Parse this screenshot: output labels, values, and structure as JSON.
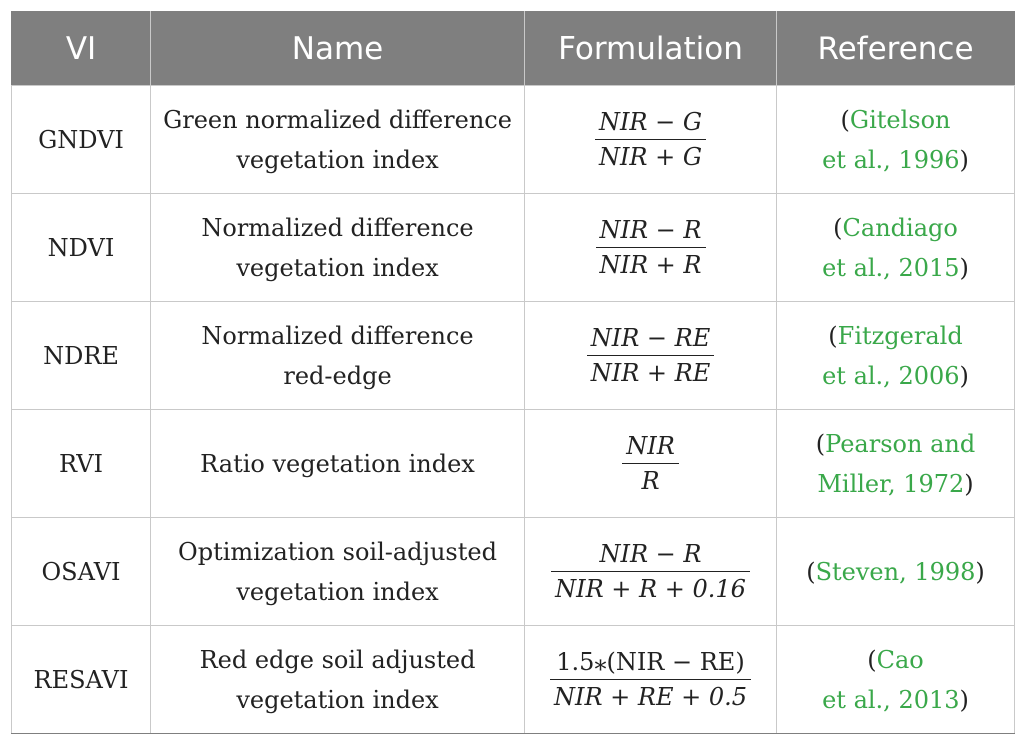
{
  "header": {
    "col1": "VI",
    "col2": "Name",
    "col3": "Formulation",
    "col4": "Reference"
  },
  "rows": [
    {
      "vi": "GNDVI",
      "name": [
        "Green normalized difference",
        "vegetation index"
      ],
      "num": "NIR − G",
      "den": "NIR + G",
      "ref": [
        "(",
        "Gitelson",
        "et al., 1996",
        ")"
      ]
    },
    {
      "vi": "NDVI",
      "name": [
        "Normalized difference",
        "vegetation index"
      ],
      "num": "NIR − R",
      "den": "NIR + R",
      "ref": [
        "(",
        "Candiago",
        "et al., 2015",
        ")"
      ]
    },
    {
      "vi": "NDRE",
      "name": [
        "Normalized difference",
        "red-edge"
      ],
      "num": "NIR − RE",
      "den": "NIR + RE",
      "ref": [
        "(",
        "Fitzgerald",
        "et al., 2006",
        ")"
      ]
    },
    {
      "vi": "RVI",
      "name": [
        "Ratio vegetation index",
        ""
      ],
      "num": "NIR",
      "den": "R",
      "ref": [
        "(",
        "Pearson and",
        "Miller, 1972",
        ")"
      ]
    },
    {
      "vi": "OSAVI",
      "name": [
        "Optimization soil-adjusted",
        "vegetation index"
      ],
      "num": "NIR − R",
      "den": "NIR + R + 0.16",
      "ref": [
        "(",
        "Steven, 1998",
        "",
        ")"
      ]
    },
    {
      "vi": "RESAVI",
      "name": [
        "Red edge soil adjusted",
        "vegetation index"
      ],
      "num": "1.5⁎(NIR − RE)",
      "den": "NIR + RE + 0.5",
      "ref": [
        "(",
        "Cao",
        "et al., 2013",
        ")"
      ]
    }
  ],
  "colors": {
    "header_bg": "#7f7f7f",
    "header_text": "#ffffff",
    "link": "#3aa84a",
    "border": "#c9c9c9"
  }
}
